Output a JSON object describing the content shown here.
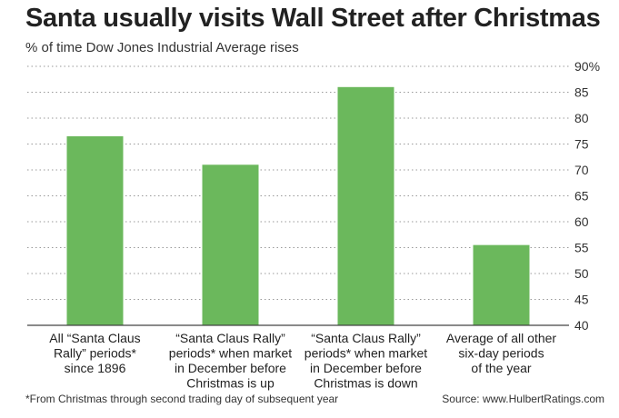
{
  "title": "Santa usually visits Wall Street after Christmas",
  "subtitle": "% of time Dow Jones Industrial Average rises",
  "footnote": "*From Christmas through second trading day of subsequent year",
  "source": "Source: www.HulbertRatings.com",
  "bar_color": "#6bb85c",
  "chart_data": {
    "type": "bar",
    "title": "Santa usually visits Wall Street after Christmas",
    "subtitle": "% of time Dow Jones Industrial Average rises",
    "categories": [
      [
        "All “Santa Claus",
        "Rally” periods*",
        "since 1896"
      ],
      [
        "“Santa Claus Rally”",
        "periods* when market",
        "in December before",
        "Christmas is up"
      ],
      [
        "“Santa Claus Rally”",
        "periods* when market",
        "in December before",
        "Christmas is down"
      ],
      [
        "Average of all other",
        "six-day periods",
        "of the year"
      ]
    ],
    "values": [
      76.5,
      71,
      86,
      55.5
    ],
    "ylim": [
      40,
      90
    ],
    "yticks": [
      "90%",
      "85",
      "80",
      "75",
      "70",
      "65",
      "60",
      "55",
      "50",
      "45",
      "40"
    ],
    "ytick_values": [
      90,
      85,
      80,
      75,
      70,
      65,
      60,
      55,
      50,
      45,
      40
    ],
    "grid": true,
    "axis_side": "right"
  }
}
